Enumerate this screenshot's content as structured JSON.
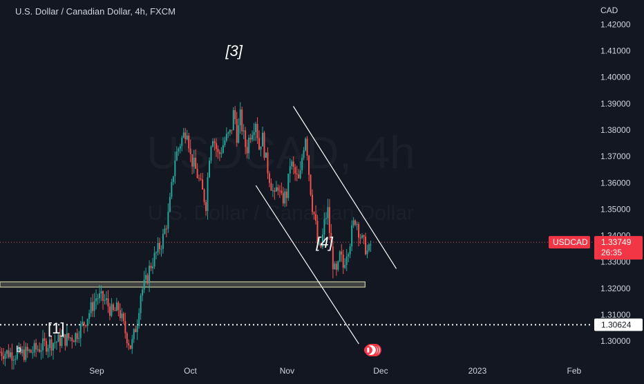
{
  "header": {
    "title": "U.S. Dollar / Canadian Dollar, 4h, FXCM",
    "watermark_symbol": "USDCAD, 4h",
    "watermark_name": "U.S. Dollar / Canadian Dollar",
    "currency": "CAD"
  },
  "colors": {
    "background": "#131722",
    "up": "#26a69a",
    "down": "#ef5350",
    "text": "#d1d4dc",
    "price_tag": "#f23645",
    "support_zone": "#c8c8a0",
    "annotation": "#ffffff"
  },
  "markers": {
    "b_icon": "b",
    "flag_icon": "canada-flag-icon"
  },
  "chart_data": {
    "type": "candlestick",
    "symbol": "USDCAD",
    "interval": "4h",
    "ylim": [
      1.2935,
      1.4235
    ],
    "y_ticks": [
      "1.30000",
      "1.31000",
      "1.32000",
      "1.33000",
      "1.34000",
      "1.35000",
      "1.36000",
      "1.37000",
      "1.38000",
      "1.39000",
      "1.40000",
      "1.41000",
      "1.42000"
    ],
    "y_tick_values": [
      1.3,
      1.31,
      1.32,
      1.33,
      1.34,
      1.35,
      1.36,
      1.37,
      1.38,
      1.39,
      1.4,
      1.41,
      1.42
    ],
    "x_ticks": [
      {
        "label": "Sep",
        "day": 31
      },
      {
        "label": "Oct",
        "day": 61
      },
      {
        "label": "Nov",
        "day": 92
      },
      {
        "label": "Dec",
        "day": 122
      },
      {
        "label": "2023",
        "day": 153
      },
      {
        "label": "Feb",
        "day": 184
      }
    ],
    "x_domain": [
      0,
      190
    ],
    "last_price": {
      "symbol": "USDCAD",
      "value": "1.33749",
      "countdown": "26:35"
    },
    "reference_line": {
      "value": "1.30624",
      "level": 1.30624
    },
    "support_zone": {
      "from_day": 0,
      "to_day": 117,
      "low": 1.3205,
      "high": 1.3225
    },
    "channel_lines": [
      {
        "points": [
          [
            94,
            1.389
          ],
          [
            127,
            1.3275
          ]
        ]
      },
      {
        "points": [
          [
            82,
            1.359
          ],
          [
            115,
            1.299
          ]
        ]
      }
    ],
    "wave_labels": [
      {
        "text": "[3]",
        "day": 75,
        "price": 1.408,
        "italic": true
      },
      {
        "text": "[4]",
        "day": 104,
        "price": 1.3355,
        "italic": true
      },
      {
        "text": "[1]",
        "day": 18,
        "price": 1.303,
        "italic": false
      }
    ],
    "price_path": [
      [
        0,
        1.296
      ],
      [
        6,
        1.295
      ],
      [
        10,
        1.296
      ],
      [
        15,
        1.299
      ],
      [
        20,
        1.3005
      ],
      [
        24,
        1.302
      ],
      [
        27,
        1.307
      ],
      [
        29,
        1.312
      ],
      [
        31,
        1.317
      ],
      [
        34,
        1.315
      ],
      [
        36,
        1.3105
      ],
      [
        38,
        1.3125
      ],
      [
        40,
        1.304
      ],
      [
        42,
        1.2975
      ],
      [
        44,
        1.308
      ],
      [
        45,
        1.318
      ],
      [
        47,
        1.323
      ],
      [
        48,
        1.328
      ],
      [
        50,
        1.333
      ],
      [
        52,
        1.338
      ],
      [
        54,
        1.348
      ],
      [
        55,
        1.358
      ],
      [
        56,
        1.369
      ],
      [
        58,
        1.376
      ],
      [
        60,
        1.381
      ],
      [
        61,
        1.37
      ],
      [
        63,
        1.364
      ],
      [
        65,
        1.356
      ],
      [
        66,
        1.352
      ],
      [
        67,
        1.37
      ],
      [
        68,
        1.379
      ],
      [
        70,
        1.37
      ],
      [
        72,
        1.376
      ],
      [
        74,
        1.379
      ],
      [
        75,
        1.388
      ],
      [
        76,
        1.377
      ],
      [
        77,
        1.385
      ],
      [
        78,
        1.378
      ],
      [
        79,
        1.372
      ],
      [
        80,
        1.378
      ],
      [
        82,
        1.384
      ],
      [
        83,
        1.373
      ],
      [
        84,
        1.378
      ],
      [
        85,
        1.37
      ],
      [
        86,
        1.364
      ],
      [
        88,
        1.354
      ],
      [
        89,
        1.36
      ],
      [
        90,
        1.353
      ],
      [
        92,
        1.356
      ],
      [
        93,
        1.368
      ],
      [
        95,
        1.362
      ],
      [
        96,
        1.36
      ],
      [
        97,
        1.372
      ],
      [
        98,
        1.379
      ],
      [
        99,
        1.364
      ],
      [
        100,
        1.352
      ],
      [
        101,
        1.346
      ],
      [
        102,
        1.334
      ],
      [
        103,
        1.336
      ],
      [
        104,
        1.345
      ],
      [
        105,
        1.35
      ],
      [
        106,
        1.336
      ],
      [
        107,
        1.327
      ],
      [
        108,
        1.325
      ],
      [
        109,
        1.333
      ],
      [
        110,
        1.328
      ],
      [
        111,
        1.334
      ],
      [
        112,
        1.337
      ],
      [
        113,
        1.343
      ],
      [
        114,
        1.347
      ],
      [
        115,
        1.342
      ],
      [
        116,
        1.338
      ],
      [
        117,
        1.336
      ],
      [
        118,
        1.333
      ],
      [
        119,
        1.3375
      ]
    ]
  }
}
